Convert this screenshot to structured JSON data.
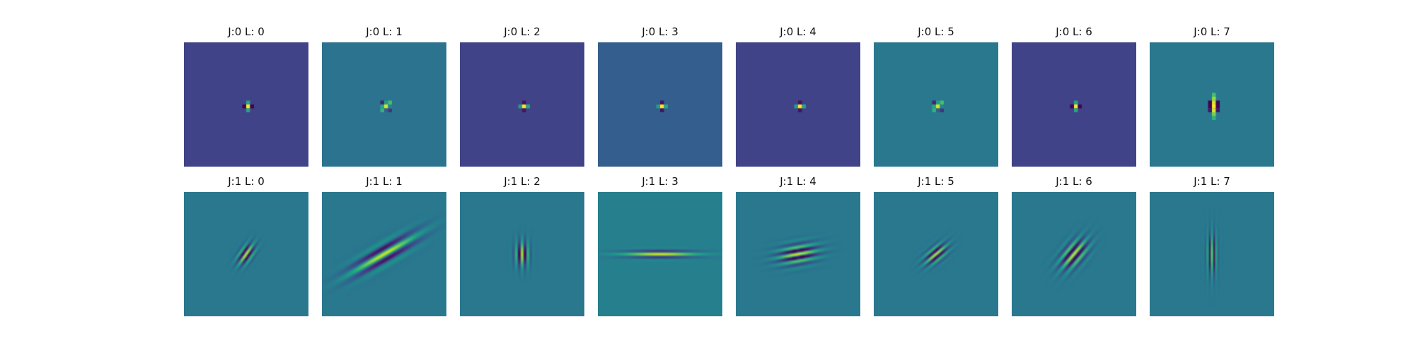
{
  "figure": {
    "panels": [
      {
        "title": "J:0 L: 0",
        "j": 0,
        "l": 0
      },
      {
        "title": "J:0 L: 1",
        "j": 0,
        "l": 1
      },
      {
        "title": "J:0 L: 2",
        "j": 0,
        "l": 2
      },
      {
        "title": "J:0 L: 3",
        "j": 0,
        "l": 3
      },
      {
        "title": "J:0 L: 4",
        "j": 0,
        "l": 4
      },
      {
        "title": "J:0 L: 5",
        "j": 0,
        "l": 5
      },
      {
        "title": "J:0 L: 6",
        "j": 0,
        "l": 6
      },
      {
        "title": "J:0 L: 7",
        "j": 0,
        "l": 7
      },
      {
        "title": "J:1 L: 0",
        "j": 1,
        "l": 0
      },
      {
        "title": "J:1 L: 1",
        "j": 1,
        "l": 1
      },
      {
        "title": "J:1 L: 2",
        "j": 1,
        "l": 2
      },
      {
        "title": "J:1 L: 3",
        "j": 1,
        "l": 3
      },
      {
        "title": "J:1 L: 4",
        "j": 1,
        "l": 4
      },
      {
        "title": "J:1 L: 5",
        "j": 1,
        "l": 5
      },
      {
        "title": "J:1 L: 6",
        "j": 1,
        "l": 6
      },
      {
        "title": "J:1 L: 7",
        "j": 1,
        "l": 7
      }
    ],
    "colors": {
      "background": "#ffffff",
      "title_text": "#111111"
    }
  }
}
